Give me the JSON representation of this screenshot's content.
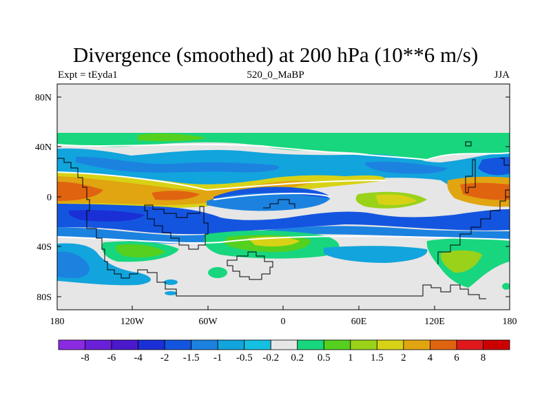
{
  "title": "Divergence (smoothed) at 200 hPa (10**6 m/s)",
  "subtitle_left": "Expt = tEyda1",
  "subtitle_center": "520_0_MaBP",
  "subtitle_right": "JJA",
  "lat_ticks": [
    "80N",
    "40N",
    "0",
    "40S",
    "80S"
  ],
  "lon_ticks": [
    "180",
    "120W",
    "60W",
    "0",
    "60E",
    "120E",
    "180"
  ],
  "colorbar": {
    "labels": [
      "-8",
      "-6",
      "-4",
      "-2",
      "-1.5",
      "-1",
      "-0.5",
      "-0.2",
      "0.2",
      "0.5",
      "1",
      "1.5",
      "2",
      "4",
      "6",
      "8"
    ],
    "colors": [
      "#8a2be2",
      "#6a1fd8",
      "#4b18cc",
      "#1a2fd6",
      "#1455e0",
      "#1c82e0",
      "#12a4dc",
      "#14bfe0",
      "#e6e6e6",
      "#18d67e",
      "#55d01e",
      "#9ad21a",
      "#d8d216",
      "#e0a510",
      "#e06410",
      "#e0181c",
      "#cc0000"
    ]
  },
  "palette": {
    "background": "#e6e6e6",
    "coast": "#000000"
  }
}
